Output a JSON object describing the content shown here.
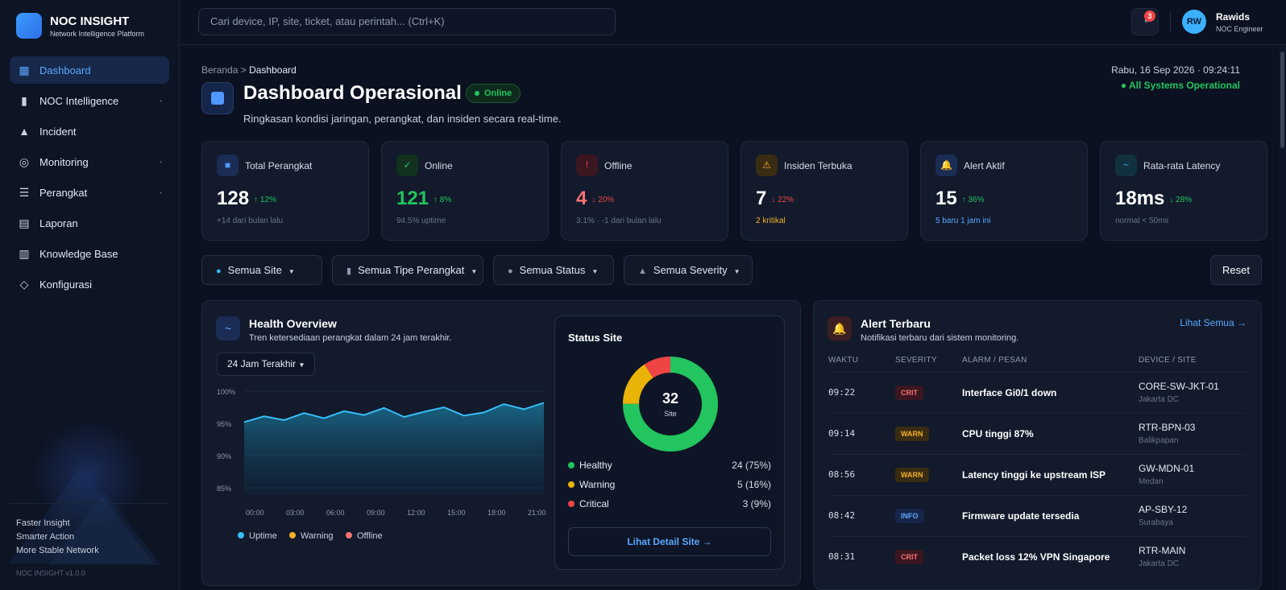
{
  "brand": {
    "name": "NOC INSIGHT",
    "tagline": "Network Intelligence Platform"
  },
  "nav": [
    {
      "label": "Dashboard",
      "icon": "grid-icon",
      "active": true,
      "caret": false
    },
    {
      "label": "NOC Intelligence",
      "icon": "bar-chart-icon",
      "active": false,
      "caret": true
    },
    {
      "label": "Incident",
      "icon": "warning-triangle-icon",
      "active": false,
      "caret": false
    },
    {
      "label": "Monitoring",
      "icon": "target-icon",
      "active": false,
      "caret": true
    },
    {
      "label": "Perangkat",
      "icon": "server-icon",
      "active": false,
      "caret": true
    },
    {
      "label": "Laporan",
      "icon": "document-icon",
      "active": false,
      "caret": false
    },
    {
      "label": "Knowledge Base",
      "icon": "book-icon",
      "active": false,
      "caret": false
    },
    {
      "label": "Konfigurasi",
      "icon": "settings-icon",
      "active": false,
      "caret": false
    }
  ],
  "sidebar_footer": {
    "line1": "Faster Insight",
    "line2": "Smarter Action",
    "line3": "More Stable Network",
    "version": "NOC INSIGHT v1.0.0"
  },
  "search": {
    "placeholder": "Cari device, IP, site, ticket, atau perintah... (Ctrl+K)"
  },
  "notifications": {
    "count": "3"
  },
  "user": {
    "initials": "RW",
    "name": "Rawids",
    "role": "NOC Engineer"
  },
  "breadcrumb": {
    "home": "Beranda",
    "sep": ">",
    "current": "Dashboard"
  },
  "datetime": "Rabu, 16 Sep 2026 · 09:24:11",
  "system_status": "All Systems Operational",
  "page": {
    "title": "Dashboard Operasional",
    "status": "Online",
    "subtitle": "Ringkasan kondisi jaringan, perangkat, dan insiden secara real-time."
  },
  "stats": [
    {
      "label": "Total Perangkat",
      "value": "128",
      "trend": "↑ 12%",
      "trend_color": "#22c55e",
      "note": "+14 dari bulan lalu",
      "note_color": "#6b7589",
      "value_color": "#ffffff",
      "icon": "device-icon",
      "icon_glyph": "■",
      "icon_bg": "#1b2c55",
      "icon_color": "#4f98ff"
    },
    {
      "label": "Online",
      "value": "121",
      "trend": "↑ 8%",
      "trend_color": "#22c55e",
      "note": "94.5% uptime",
      "note_color": "#6b7589",
      "value_color": "#22c55e",
      "icon": "check-icon",
      "icon_glyph": "✓",
      "icon_bg": "#12321f",
      "icon_color": "#22c55e"
    },
    {
      "label": "Offline",
      "value": "4",
      "trend": "↓ 20%",
      "trend_color": "#ef4444",
      "note": "3.1% · -1 dari bulan lalu",
      "note_color": "#6b7589",
      "value_color": "#f87171",
      "icon": "alert-icon",
      "icon_glyph": "!",
      "icon_bg": "#3a1620",
      "icon_color": "#ef4444"
    },
    {
      "label": "Insiden Terbuka",
      "value": "7",
      "trend": "↓ 22%",
      "trend_color": "#ef4444",
      "note": "2 kritikal",
      "note_color": "#f5b12a",
      "value_color": "#ffffff",
      "icon": "warning-icon",
      "icon_glyph": "⚠",
      "icon_bg": "#3a2c12",
      "icon_color": "#f5b12a"
    },
    {
      "label": "Alert Aktif",
      "value": "15",
      "trend": "↑ 36%",
      "trend_color": "#22c55e",
      "note": "5 baru 1 jam ini",
      "note_color": "#5aa8ff",
      "value_color": "#ffffff",
      "icon": "bell-icon",
      "icon_glyph": "🔔",
      "icon_bg": "#1b2c55",
      "icon_color": "#f5b12a"
    },
    {
      "label": "Rata-rata Latency",
      "value": "18ms",
      "trend": "↓ 28%",
      "trend_color": "#22c55e",
      "note": "normal < 50ms",
      "note_color": "#6b7589",
      "value_color": "#ffffff",
      "icon": "pulse-icon",
      "icon_glyph": "~",
      "icon_bg": "#12313f",
      "icon_color": "#38bdf8"
    }
  ],
  "filters": [
    {
      "label": "Semua Site",
      "icon": "globe-icon",
      "glyph": "●"
    },
    {
      "label": "Semua Tipe Perangkat",
      "icon": "device-type-icon",
      "glyph": "▮"
    },
    {
      "label": "Semua Status",
      "icon": "status-dot-icon",
      "glyph": "●"
    },
    {
      "label": "Semua Severity",
      "icon": "severity-icon",
      "glyph": "▲"
    }
  ],
  "reset_label": "Reset",
  "health": {
    "title": "Health Overview",
    "subtitle": "Tren ketersediaan perangkat dalam 24 jam terakhir.",
    "range": "24 Jam Terakhir"
  },
  "chart_data": {
    "type": "area",
    "title": "",
    "x": [
      "00:00",
      "",
      "03:00",
      "",
      "06:00",
      "",
      "09:00",
      "",
      "12:00",
      "",
      "15:00",
      "",
      "18:00",
      "",
      "21:00",
      ""
    ],
    "xticks": [
      "00:00",
      "03:00",
      "06:00",
      "09:00",
      "12:00",
      "15:00",
      "18:00",
      "21:00"
    ],
    "yticks": [
      "100%",
      "95%",
      "90%",
      "85%"
    ],
    "ylim": [
      84,
      100
    ],
    "series": [
      {
        "name": "Uptime",
        "color": "#38bdf8",
        "values": [
          95.2,
          96.1,
          95.5,
          96.6,
          95.8,
          96.9,
          96.3,
          97.4,
          96.0,
          96.8,
          97.5,
          96.2,
          96.7,
          98.0,
          97.2,
          98.2
        ]
      }
    ],
    "legend": [
      {
        "name": "Uptime",
        "color": "#38bdf8"
      },
      {
        "name": "Warning",
        "color": "#f5b12a"
      },
      {
        "name": "Offline",
        "color": "#f87171"
      }
    ],
    "grid": true
  },
  "site_status": {
    "title": "Status Site",
    "total": "32",
    "total_label": "Site",
    "slices": [
      {
        "label": "Healthy",
        "value": 24,
        "display": "24 (75%)",
        "color": "#22c55e"
      },
      {
        "label": "Warning",
        "value": 5,
        "display": "5 (16%)",
        "color": "#eab308"
      },
      {
        "label": "Critical",
        "value": 3,
        "display": "3 (9%)",
        "color": "#ef4444"
      }
    ],
    "button": "Lihat Detail Site →"
  },
  "alerts": {
    "title": "Alert Terbaru",
    "subtitle": "Notifikasi terbaru dari sistem monitoring.",
    "view_all": "Lihat Semua →",
    "headers": {
      "time": "WAKTU",
      "severity": "SEVERITY",
      "message": "ALARM / PESAN",
      "device": "DEVICE / SITE"
    },
    "rows": [
      {
        "time": "09:22",
        "severity": "CRIT",
        "message": "Interface Gi0/1 down",
        "device": "CORE-SW-JKT-01",
        "site": "Jakarta DC"
      },
      {
        "time": "09:14",
        "severity": "WARN",
        "message": "CPU tinggi 87%",
        "device": "RTR-BPN-03",
        "site": "Balikpapan"
      },
      {
        "time": "08:56",
        "severity": "WARN",
        "message": "Latency tinggi ke upstream ISP",
        "device": "GW-MDN-01",
        "site": "Medan"
      },
      {
        "time": "08:42",
        "severity": "INFO",
        "message": "Firmware update tersedia",
        "device": "AP-SBY-12",
        "site": "Surabaya"
      },
      {
        "time": "08:31",
        "severity": "CRIT",
        "message": "Packet loss 12% VPN Singapore",
        "device": "RTR-MAIN",
        "site": "Jakarta DC"
      }
    ]
  }
}
